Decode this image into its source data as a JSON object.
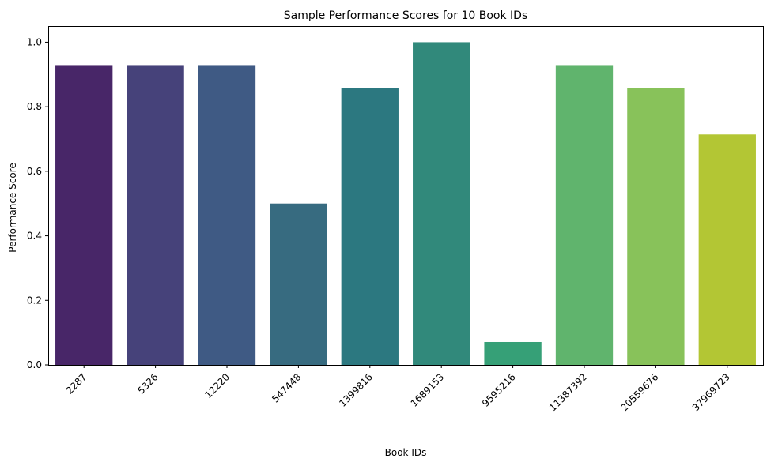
{
  "chart_data": {
    "type": "bar",
    "title": "Sample Performance Scores for 10 Book IDs",
    "xlabel": "Book IDs",
    "ylabel": "Performance Score",
    "categories": [
      "2287",
      "5326",
      "12220",
      "547448",
      "1399816",
      "1689153",
      "9595216",
      "11387392",
      "20559676",
      "37969723"
    ],
    "values": [
      0.929,
      0.929,
      0.929,
      0.5,
      0.857,
      1.0,
      0.071,
      0.929,
      0.857,
      0.714
    ],
    "colors": [
      "#482668",
      "#46427a",
      "#3f5a84",
      "#376b80",
      "#2c7880",
      "#31897b",
      "#36a077",
      "#60b46d",
      "#88c25a",
      "#b3c634"
    ],
    "ylim": [
      0,
      1.05
    ],
    "yticks": [
      0.0,
      0.2,
      0.4,
      0.6,
      0.8,
      1.0
    ],
    "ytick_labels": [
      "0.0",
      "0.2",
      "0.4",
      "0.6",
      "0.8",
      "1.0"
    ],
    "grid": false,
    "legend": "none"
  }
}
